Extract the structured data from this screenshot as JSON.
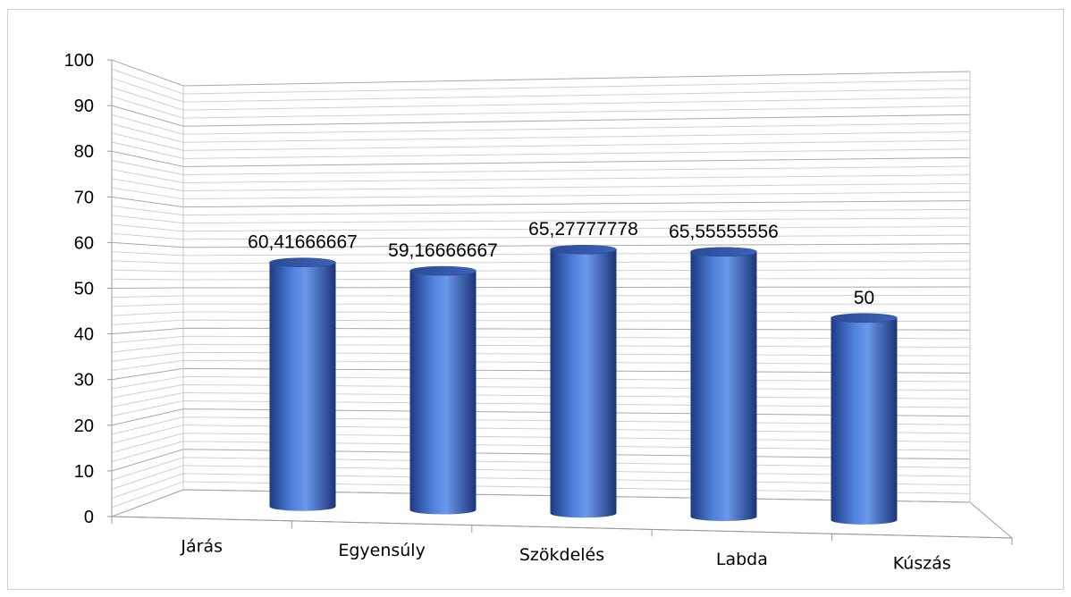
{
  "chart_data": {
    "type": "bar",
    "style": "3d-cylinder",
    "categories": [
      "Járás",
      "Egyensúly",
      "Szökdelés",
      "Labda",
      "Kúszás"
    ],
    "values": [
      60.41666667,
      59.16666667,
      65.27777778,
      65.55555556,
      50
    ],
    "data_labels": [
      "60,41666667",
      "59,16666667",
      "65,27777778",
      "65,55555556",
      "50"
    ],
    "y_ticks": [
      "0",
      "10",
      "20",
      "30",
      "40",
      "50",
      "60",
      "70",
      "80",
      "90",
      "100"
    ],
    "ylim": [
      0,
      100
    ],
    "grid": true,
    "legend": "none",
    "title": "",
    "xlabel": "",
    "ylabel": "",
    "colors": {
      "bar": "#3f6fc6",
      "bar_dark": "#1f3f8a",
      "bar_light": "#6f9be8",
      "grid": "#b8b8b8",
      "axis": "#9a9a9a"
    }
  }
}
